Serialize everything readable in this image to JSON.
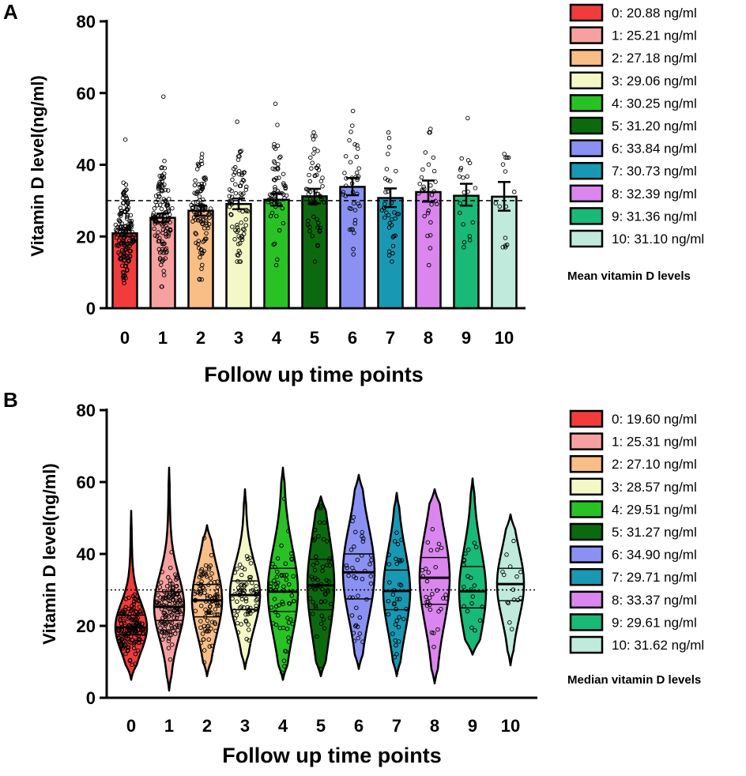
{
  "colors": [
    "#f23c3c",
    "#f7a0a0",
    "#f9bd86",
    "#f3f8c6",
    "#29c225",
    "#0c6a0e",
    "#8a91f2",
    "#1998b3",
    "#da86ee",
    "#19b978",
    "#bfeadc"
  ],
  "chart_data": [
    {
      "panel": "A",
      "type": "bar",
      "ylabel": "Vitamin D level(ng/ml)",
      "xlabel": "Follow up time points",
      "ylim": [
        0,
        80
      ],
      "yticks": [
        0,
        20,
        40,
        60,
        80
      ],
      "categories": [
        "0",
        "1",
        "2",
        "3",
        "4",
        "5",
        "6",
        "7",
        "8",
        "9",
        "10"
      ],
      "values": [
        20.88,
        25.21,
        27.18,
        29.06,
        30.25,
        31.2,
        33.84,
        30.73,
        32.39,
        31.36,
        31.1
      ],
      "error_low": [
        20.0,
        24.0,
        25.8,
        27.6,
        28.6,
        29.2,
        31.5,
        28.2,
        29.7,
        28.6,
        27.2
      ],
      "error_high": [
        21.8,
        26.4,
        28.6,
        30.6,
        32.0,
        33.3,
        36.3,
        33.4,
        35.6,
        34.7,
        35.2
      ],
      "point_counts": [
        160,
        130,
        100,
        75,
        60,
        55,
        40,
        35,
        30,
        20,
        15
      ],
      "point_range_low": [
        7,
        6,
        8,
        13,
        12,
        13,
        15,
        13,
        12,
        17,
        17
      ],
      "point_range_high": [
        47,
        59,
        43,
        52,
        57,
        49,
        55,
        49,
        50,
        53,
        43
      ],
      "reference_line": 30,
      "legend_entries": [
        "0: 20.88 ng/ml",
        "1: 25.21 ng/ml",
        "2: 27.18 ng/ml",
        "3: 29.06 ng/ml",
        "4: 30.25 ng/ml",
        "5: 31.20 ng/ml",
        "6: 33.84 ng/ml",
        "7: 30.73 ng/ml",
        "8: 32.39 ng/ml",
        "9: 31.36 ng/ml",
        "10: 31.10 ng/ml"
      ],
      "legend_title": "Mean vitamin D levels"
    },
    {
      "panel": "B",
      "type": "violin",
      "ylabel": "Vitamin D level(ng/ml)",
      "xlabel": "Follow up time points",
      "ylim": [
        0,
        80
      ],
      "yticks": [
        0,
        20,
        40,
        60,
        80
      ],
      "categories": [
        "0",
        "1",
        "2",
        "3",
        "4",
        "5",
        "6",
        "7",
        "8",
        "9",
        "10"
      ],
      "medians": [
        19.6,
        25.31,
        27.1,
        28.57,
        29.51,
        31.27,
        34.9,
        29.71,
        33.37,
        29.61,
        31.62
      ],
      "q1": [
        17.5,
        21.5,
        22.5,
        24.5,
        24.0,
        24.5,
        27.5,
        24.5,
        26.0,
        25.0,
        27.0
      ],
      "q3": [
        23.0,
        29.5,
        31.5,
        32.5,
        36.0,
        38.5,
        40.0,
        35.5,
        39.0,
        36.5,
        36.0
      ],
      "min": [
        5,
        2,
        6,
        8,
        5,
        6,
        8,
        6,
        4,
        12,
        9
      ],
      "max": [
        52,
        64,
        48,
        58,
        64,
        56,
        62,
        57,
        58,
        61,
        51
      ],
      "point_counts": [
        160,
        130,
        100,
        75,
        60,
        55,
        40,
        35,
        30,
        20,
        15
      ],
      "reference_line": 30,
      "legend_entries": [
        "0: 19.60 ng/ml",
        "1: 25.31 ng/ml",
        "2: 27.10 ng/ml",
        "3: 28.57 ng/ml",
        "4: 29.51 ng/ml",
        "5: 31.27 ng/ml",
        "6: 34.90 ng/ml",
        "7: 29.71 ng/ml",
        "8: 33.37 ng/ml",
        "9: 29.61 ng/ml",
        "10: 31.62 ng/ml"
      ],
      "legend_title": "Median vitamin D levels"
    }
  ]
}
